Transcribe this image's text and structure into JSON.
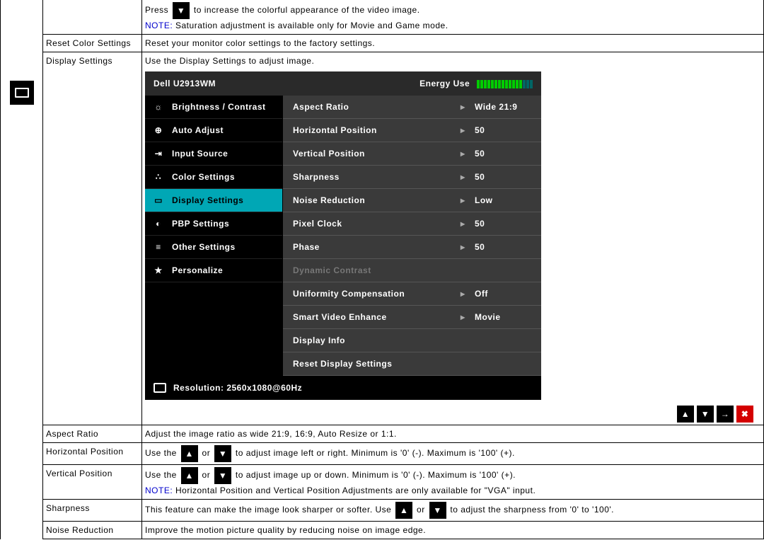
{
  "rows": {
    "press_text_a": "Press",
    "press_text_b": "to increase the colorful appearance of the video image.",
    "saturation_note_label": "NOTE:",
    "saturation_note_text": " Saturation adjustment is available only for Movie and Game mode.",
    "reset_color_label": "Reset Color Settings",
    "reset_color_desc": "Reset your monitor color settings to the factory settings.",
    "display_settings_label": "Display Settings",
    "display_settings_desc": "Use the Display Settings to adjust image.",
    "aspect_ratio_label": "Aspect Ratio",
    "aspect_ratio_desc": "Adjust the image ratio as wide 21:9, 16:9, Auto Resize or 1:1.",
    "hpos_label": "Horizontal Position",
    "hpos_a": "Use the",
    "hpos_or": "or",
    "hpos_b": "to adjust image left or right. Minimum is '0' (-). Maximum is '100' (+).",
    "vpos_label": "Vertical Position",
    "vpos_a": "Use the",
    "vpos_or": "or",
    "vpos_b": "to adjust image up or down. Minimum is '0' (-). Maximum is '100' (+).",
    "vpos_note_label": "NOTE:",
    "vpos_note_text": " Horizontal Position and Vertical Position Adjustments are only available for \"VGA\" input.",
    "sharpness_label": "Sharpness",
    "sharpness_a": "This feature can make the image look sharper or softer. Use",
    "sharpness_or": "or",
    "sharpness_b": "to adjust the sharpness from '0' to '100'.",
    "noise_label": "Noise Reduction",
    "noise_desc": "Improve the motion picture quality by reducing noise on image edge."
  },
  "osd": {
    "model": "Dell U2913WM",
    "energy_label": "Energy Use",
    "menu": [
      {
        "icon": "☼",
        "label": "Brightness / Contrast",
        "active": false
      },
      {
        "icon": "⊕",
        "label": "Auto Adjust",
        "active": false
      },
      {
        "icon": "⇥",
        "label": "Input Source",
        "active": false
      },
      {
        "icon": "∴",
        "label": "Color Settings",
        "active": false
      },
      {
        "icon": "▭",
        "label": "Display Settings",
        "active": true
      },
      {
        "icon": "◐",
        "label": "PBP Settings",
        "active": false
      },
      {
        "icon": "≡",
        "label": "Other Settings",
        "active": false
      },
      {
        "icon": "★",
        "label": "Personalize",
        "active": false
      }
    ],
    "params": [
      {
        "label": "Aspect Ratio",
        "arrow": true,
        "value": "Wide 21:9"
      },
      {
        "label": "Horizontal Position",
        "arrow": true,
        "value": "50"
      },
      {
        "label": "Vertical Position",
        "arrow": true,
        "value": "50"
      },
      {
        "label": "Sharpness",
        "arrow": true,
        "value": "50"
      },
      {
        "label": "Noise Reduction",
        "arrow": true,
        "value": "Low"
      },
      {
        "label": "Pixel Clock",
        "arrow": true,
        "value": "50"
      },
      {
        "label": "Phase",
        "arrow": true,
        "value": "50"
      },
      {
        "label": "Dynamic Contrast",
        "arrow": false,
        "value": "",
        "disabled": true
      },
      {
        "label": "Uniformity Compensation",
        "arrow": true,
        "value": "Off"
      },
      {
        "label": "Smart Video Enhance",
        "arrow": true,
        "value": "Movie"
      },
      {
        "label": "Display Info",
        "arrow": false,
        "value": ""
      },
      {
        "label": "Reset Display Settings",
        "arrow": false,
        "value": ""
      }
    ],
    "resolution_label": "Resolution: 2560x1080@60Hz",
    "energy_bars": {
      "total": 16,
      "high": 13
    }
  },
  "nav_buttons": [
    "up",
    "down",
    "right",
    "close"
  ],
  "colors": {
    "osd_active": "#00a7b5",
    "note": "#0000cc",
    "close_btn": "#d40000"
  }
}
